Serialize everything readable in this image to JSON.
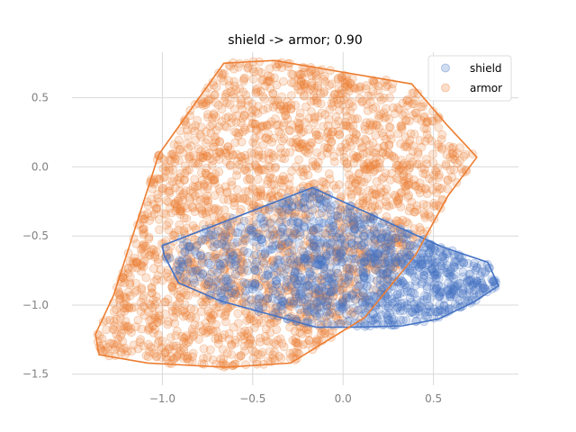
{
  "chart_data": {
    "type": "scatter",
    "title": "shield -> armor; 0.90",
    "xlabel": "",
    "ylabel": "",
    "xlim": [
      -1.5,
      0.97
    ],
    "ylim": [
      -1.58,
      0.83
    ],
    "xticks": [
      -1.0,
      -0.5,
      0.0,
      0.5
    ],
    "xtick_labels": [
      "−1.0",
      "−0.5",
      "0.0",
      "0.5"
    ],
    "yticks": [
      -1.5,
      -1.0,
      -0.5,
      0.0,
      0.5
    ],
    "ytick_labels": [
      "−1.5",
      "−1.0",
      "−0.5",
      "0.0",
      "0.5"
    ],
    "grid": true,
    "legend_position": "top-right",
    "series": [
      {
        "name": "shield",
        "color": "#4472c4",
        "hull": [
          [
            -1.0,
            -0.57
          ],
          [
            -0.17,
            -0.15
          ],
          [
            0.38,
            -0.48
          ],
          [
            0.55,
            -0.58
          ],
          [
            0.8,
            -0.69
          ],
          [
            0.86,
            -0.86
          ],
          [
            0.72,
            -0.98
          ],
          [
            0.53,
            -1.1
          ],
          [
            0.33,
            -1.15
          ],
          [
            0.08,
            -1.16
          ],
          [
            -0.15,
            -1.16
          ],
          [
            -0.68,
            -0.97
          ],
          [
            -0.91,
            -0.84
          ],
          [
            -0.99,
            -0.64
          ]
        ],
        "point_density": 1200
      },
      {
        "name": "armor",
        "color": "#ed7d31",
        "hull": [
          [
            -1.37,
            -1.21
          ],
          [
            -1.27,
            -0.93
          ],
          [
            -1.02,
            0.09
          ],
          [
            -0.66,
            0.75
          ],
          [
            -0.38,
            0.77
          ],
          [
            0.38,
            0.6
          ],
          [
            0.57,
            0.31
          ],
          [
            0.74,
            0.07
          ],
          [
            0.58,
            -0.21
          ],
          [
            0.4,
            -0.64
          ],
          [
            0.12,
            -1.09
          ],
          [
            -0.29,
            -1.42
          ],
          [
            -0.65,
            -1.45
          ],
          [
            -1.08,
            -1.42
          ],
          [
            -1.35,
            -1.36
          ]
        ],
        "point_density": 2400
      }
    ]
  }
}
